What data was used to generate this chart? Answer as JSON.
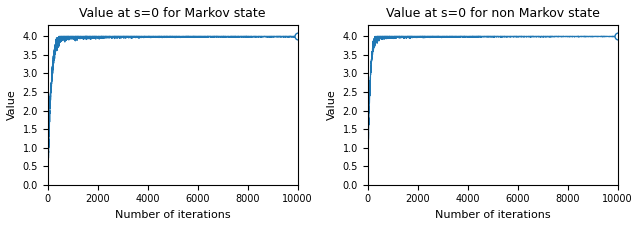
{
  "title_left": "Value at s=0 for Markov state",
  "title_right": "Value at s=0 for non Markov state",
  "xlabel": "Number of iterations",
  "ylabel": "Value",
  "xlim": [
    0,
    10000
  ],
  "ylim": [
    0.0,
    4.3
  ],
  "yticks": [
    0.0,
    0.5,
    1.0,
    1.5,
    2.0,
    2.5,
    3.0,
    3.5,
    4.0
  ],
  "xticks": [
    0,
    2000,
    4000,
    6000,
    8000,
    10000
  ],
  "n_points": 10001,
  "asymptote": 4.0,
  "line_color": "#1f77b4",
  "line_width": 0.8,
  "marker_size": 5,
  "figsize": [
    6.4,
    2.27
  ],
  "dpi": 100,
  "title_fontsize": 9,
  "label_fontsize": 8,
  "tick_fontsize": 7
}
